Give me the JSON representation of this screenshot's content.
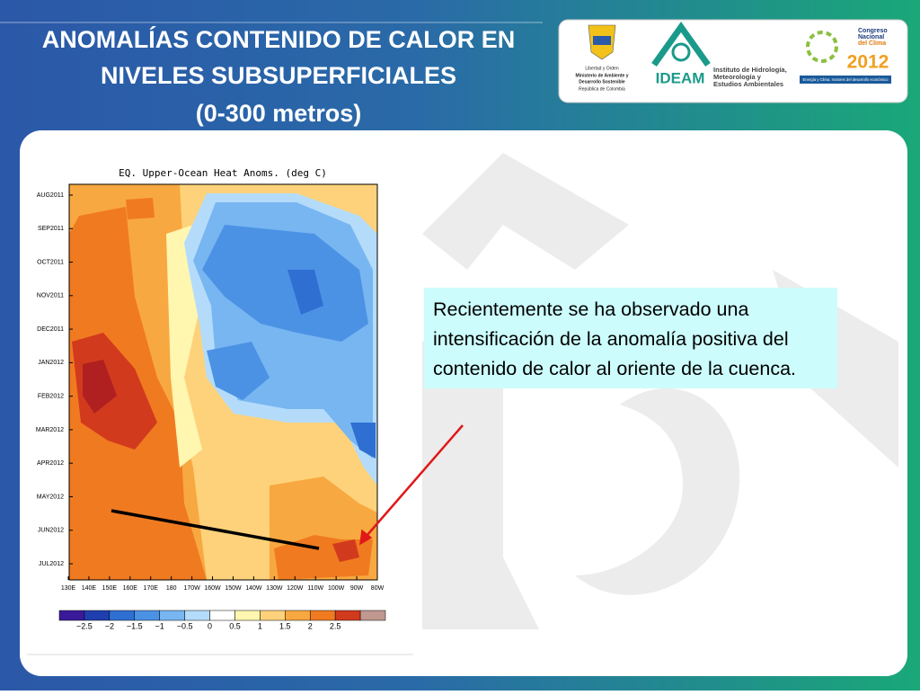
{
  "header": {
    "title_lines": [
      "ANOMALÍAS CONTENIDO DE CALOR EN",
      "NIVELES SUBSUPERFICIALES",
      "(0-300 metros)"
    ]
  },
  "logos": {
    "ministry": [
      "Libertad y Orden",
      "Ministerio de Ambiente y",
      "Desarrollo Sostenible",
      "República de Colombia"
    ],
    "ideam": {
      "name": "IDEAM",
      "lines": [
        "Instituto de Hidrología,",
        "Meteorología y",
        "Estudios Ambientales"
      ]
    },
    "congress": {
      "lines": [
        "Congreso",
        "Nacional",
        "del Clima"
      ],
      "year": "2012",
      "motto": "Energía y Clima: motores del desarrollo económico"
    }
  },
  "plot": {
    "title": "EQ. Upper-Ocean Heat Anoms. (deg C)",
    "y_labels": [
      "AUG2011",
      "SEP2011",
      "OCT2011",
      "NOV2011",
      "DEC2011",
      "JAN2012",
      "FEB2012",
      "MAR2012",
      "APR2012",
      "MAY2012",
      "JUN2012",
      "JUL2012"
    ],
    "x_labels": [
      "130E",
      "140E",
      "150E",
      "160E",
      "170E",
      "180",
      "170W",
      "160W",
      "150W",
      "140W",
      "130W",
      "120W",
      "110W",
      "100W",
      "90W",
      "80W"
    ],
    "colorbar": {
      "labels": [
        "−2.5",
        "−2",
        "−1.5",
        "−1",
        "−0.5",
        "0",
        "0.5",
        "1",
        "1.5",
        "2",
        "2.5"
      ],
      "colors": [
        "#3a1a9a",
        "#1f3fae",
        "#2f6fd2",
        "#4c92e4",
        "#78b6f2",
        "#b4dcfa",
        "#ffffff",
        "#fff6b0",
        "#fdd27a",
        "#f8a840",
        "#f07a20",
        "#d23a1e",
        "#c09890"
      ]
    }
  },
  "note": "Recientemente se ha observado una intensificación de la anomalía positiva del contenido de calor al oriente de la cuenca."
}
